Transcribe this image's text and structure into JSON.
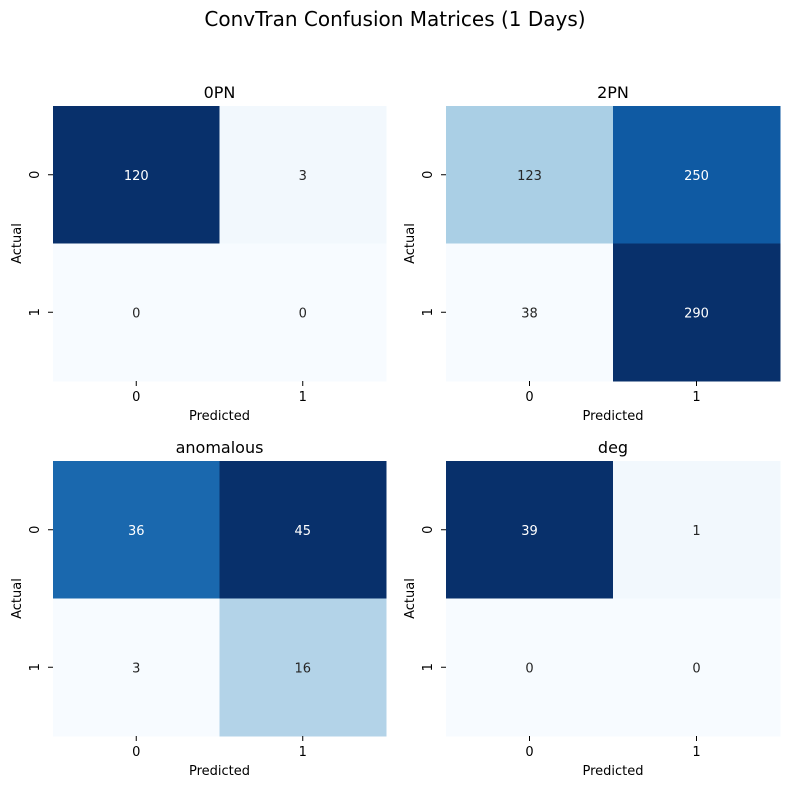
{
  "title": "ConvTran Confusion Matrices (1 Days)",
  "chart_data": [
    {
      "type": "heatmap",
      "title": "0PN",
      "xlabel": "Predicted",
      "ylabel": "Actual",
      "x_ticks": [
        "0",
        "1"
      ],
      "y_ticks": [
        "0",
        "1"
      ],
      "colormap": "Blues",
      "colorbar": false,
      "matrix": [
        [
          120,
          3
        ],
        [
          0,
          0
        ]
      ]
    },
    {
      "type": "heatmap",
      "title": "2PN",
      "xlabel": "Predicted",
      "ylabel": "Actual",
      "x_ticks": [
        "0",
        "1"
      ],
      "y_ticks": [
        "0",
        "1"
      ],
      "colormap": "Blues",
      "colorbar": false,
      "matrix": [
        [
          123,
          250
        ],
        [
          38,
          290
        ]
      ]
    },
    {
      "type": "heatmap",
      "title": "anomalous",
      "xlabel": "Predicted",
      "ylabel": "Actual",
      "x_ticks": [
        "0",
        "1"
      ],
      "y_ticks": [
        "0",
        "1"
      ],
      "colormap": "Blues",
      "colorbar": false,
      "matrix": [
        [
          36,
          45
        ],
        [
          3,
          16
        ]
      ]
    },
    {
      "type": "heatmap",
      "title": "deg",
      "xlabel": "Predicted",
      "ylabel": "Actual",
      "x_ticks": [
        "0",
        "1"
      ],
      "y_ticks": [
        "0",
        "1"
      ],
      "colormap": "Blues",
      "colorbar": false,
      "matrix": [
        [
          39,
          1
        ],
        [
          0,
          0
        ]
      ]
    }
  ]
}
